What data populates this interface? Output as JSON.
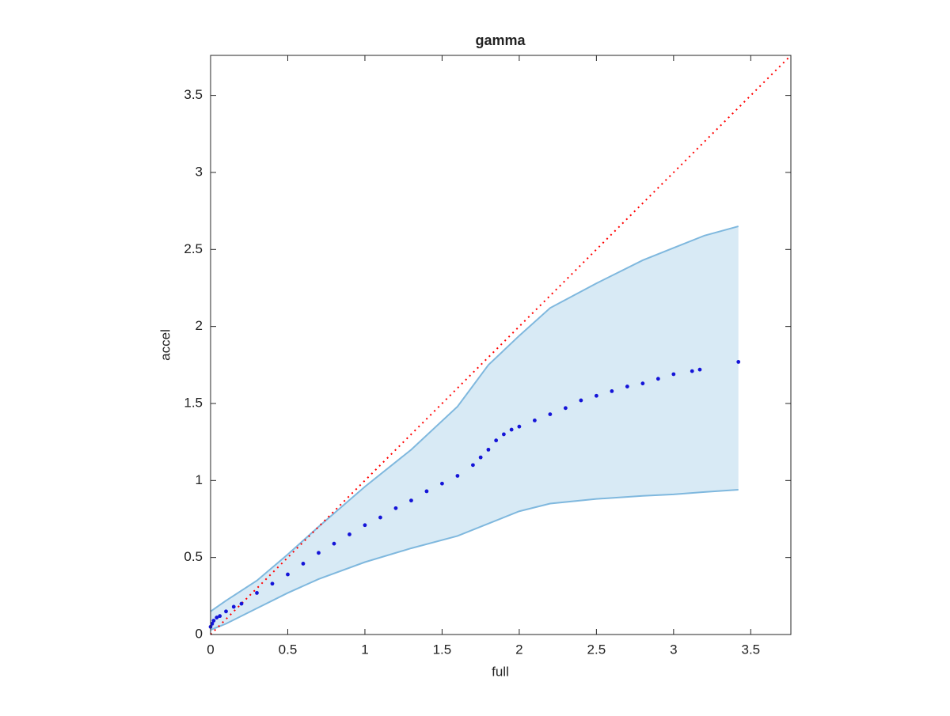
{
  "chart_data": {
    "type": "scatter",
    "title": "gamma",
    "xlabel": "full",
    "ylabel": "accel",
    "xlim": [
      0,
      3.76
    ],
    "ylim": [
      0,
      3.76
    ],
    "xticks": [
      0,
      0.5,
      1,
      1.5,
      2,
      2.5,
      3,
      3.5
    ],
    "yticks": [
      0,
      0.5,
      1,
      1.5,
      2,
      2.5,
      3,
      3.5
    ],
    "band": {
      "color": "#7fb8de",
      "x": [
        0,
        0.1,
        0.3,
        0.5,
        0.7,
        1.0,
        1.3,
        1.6,
        1.8,
        2.0,
        2.2,
        2.5,
        2.8,
        3.0,
        3.2,
        3.42
      ],
      "upper": [
        0.15,
        0.22,
        0.35,
        0.52,
        0.7,
        0.96,
        1.2,
        1.48,
        1.75,
        1.94,
        2.12,
        2.28,
        2.43,
        2.51,
        2.59,
        2.65
      ],
      "lower": [
        0.03,
        0.07,
        0.17,
        0.27,
        0.36,
        0.47,
        0.56,
        0.64,
        0.72,
        0.8,
        0.85,
        0.88,
        0.9,
        0.91,
        0.925,
        0.94
      ]
    },
    "reference": {
      "color": "#ff0000",
      "x": [
        0,
        3.76
      ],
      "values": [
        0,
        3.76
      ]
    },
    "points": {
      "color": "#1414d8",
      "x": [
        0,
        0.01,
        0.02,
        0.04,
        0.06,
        0.1,
        0.15,
        0.2,
        0.3,
        0.4,
        0.5,
        0.6,
        0.7,
        0.8,
        0.9,
        1.0,
        1.1,
        1.2,
        1.3,
        1.4,
        1.5,
        1.6,
        1.7,
        1.75,
        1.8,
        1.85,
        1.9,
        1.95,
        2.0,
        2.1,
        2.2,
        2.3,
        2.4,
        2.5,
        2.6,
        2.7,
        2.8,
        2.9,
        3.0,
        3.12,
        3.17,
        3.42
      ],
      "values": [
        0.05,
        0.07,
        0.09,
        0.11,
        0.12,
        0.15,
        0.18,
        0.2,
        0.27,
        0.33,
        0.39,
        0.46,
        0.53,
        0.59,
        0.65,
        0.71,
        0.76,
        0.82,
        0.87,
        0.93,
        0.98,
        1.03,
        1.1,
        1.15,
        1.2,
        1.26,
        1.3,
        1.33,
        1.35,
        1.39,
        1.43,
        1.47,
        1.52,
        1.55,
        1.58,
        1.61,
        1.63,
        1.66,
        1.69,
        1.71,
        1.72,
        1.77
      ]
    }
  }
}
